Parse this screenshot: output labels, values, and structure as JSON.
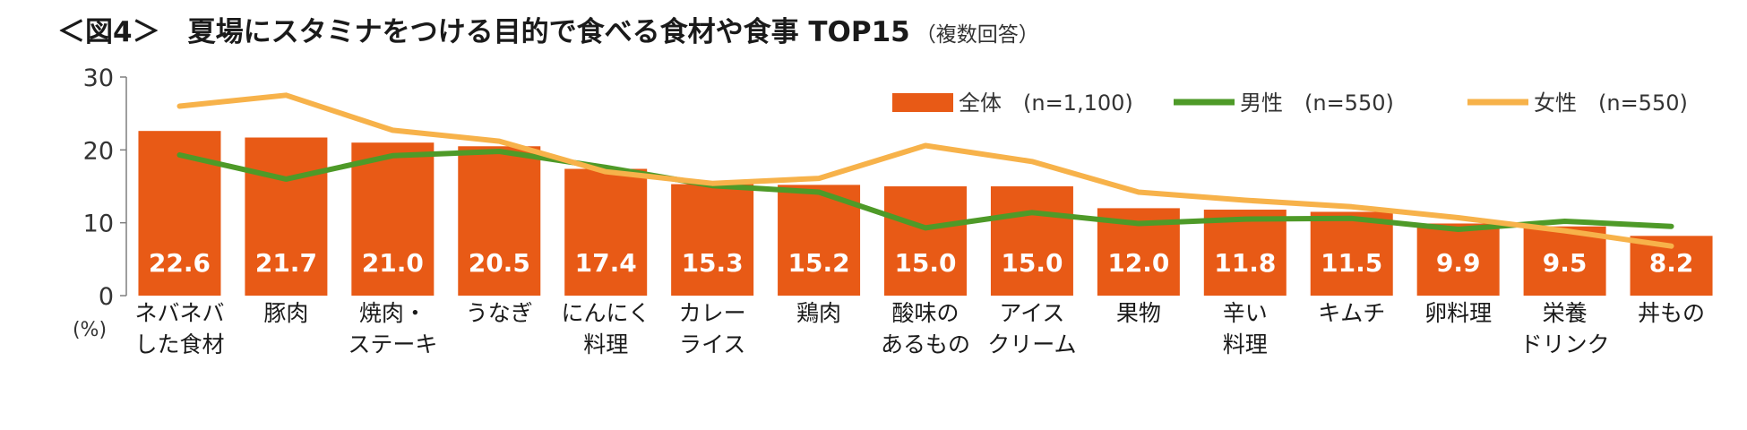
{
  "title": {
    "main": "＜図4＞　夏場にスタミナをつける目的で食べる食材や食事 TOP15",
    "sub": "（複数回答）"
  },
  "colors": {
    "bar": "#E85A16",
    "male_line": "#4E9A28",
    "female_line": "#F7B24A",
    "bar_label": "#ffffff",
    "axis": "#7f7f7f",
    "text": "#1a1a1a"
  },
  "chart_data": {
    "type": "bar",
    "title": "＜図4＞　夏場にスタミナをつける目的で食べる食材や食事 TOP15",
    "subtitle": "（複数回答）",
    "ylabel": "(%)",
    "ylim": [
      0,
      30
    ],
    "yticks": [
      0,
      10,
      20,
      30
    ],
    "grid": false,
    "legend_position": "top-right",
    "categories": [
      [
        "ネバネバ",
        "した食材"
      ],
      [
        "豚肉"
      ],
      [
        "焼肉・",
        "ステーキ"
      ],
      [
        "うなぎ"
      ],
      [
        "にんにく",
        "料理"
      ],
      [
        "カレー",
        "ライス"
      ],
      [
        "鶏肉"
      ],
      [
        "酸味の",
        "あるもの"
      ],
      [
        "アイス",
        "クリーム"
      ],
      [
        "果物"
      ],
      [
        "辛い",
        "料理"
      ],
      [
        "キムチ"
      ],
      [
        "卵料理"
      ],
      [
        "栄養",
        "ドリンク"
      ],
      [
        "丼もの"
      ]
    ],
    "value_labels": [
      "22.6",
      "21.7",
      "21.0",
      "20.5",
      "17.4",
      "15.3",
      "15.2",
      "15.0",
      "15.0",
      "12.0",
      "11.8",
      "11.5",
      "9.9",
      "9.5",
      "8.2"
    ],
    "series": [
      {
        "name": "全体　(n=1,100)",
        "kind": "bar",
        "values": [
          22.6,
          21.7,
          21.0,
          20.5,
          17.4,
          15.3,
          15.2,
          15.0,
          15.0,
          12.0,
          11.8,
          11.5,
          9.9,
          9.5,
          8.2
        ]
      },
      {
        "name": "男性　(n=550)",
        "kind": "line",
        "values": [
          19.3,
          16.0,
          19.2,
          19.8,
          17.6,
          15.1,
          14.2,
          9.3,
          11.4,
          9.9,
          10.5,
          10.6,
          9.1,
          10.2,
          9.5
        ]
      },
      {
        "name": "女性　(n=550)",
        "kind": "line",
        "values": [
          26.0,
          27.5,
          22.7,
          21.2,
          17.0,
          15.4,
          16.1,
          20.6,
          18.4,
          14.2,
          13.1,
          12.2,
          10.7,
          8.9,
          6.8
        ]
      }
    ]
  }
}
